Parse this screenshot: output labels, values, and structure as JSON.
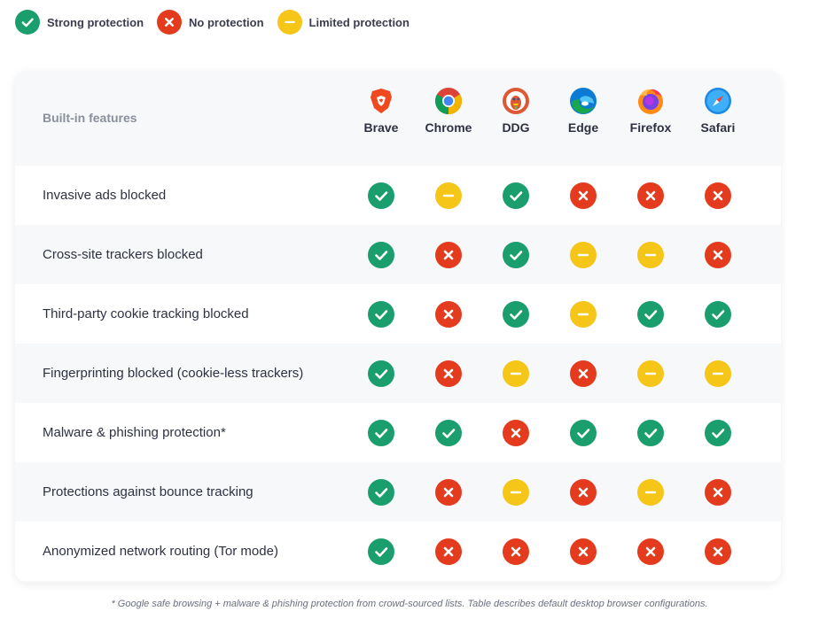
{
  "colors": {
    "strong": "#1a9e6e",
    "none": "#e43b1e",
    "limited": "#f5c518",
    "header_bg": "#f7f8f9",
    "row_alt": "#ffffff"
  },
  "legend": [
    {
      "status": "strong",
      "label": "Strong protection",
      "icon": "check-icon"
    },
    {
      "status": "none",
      "label": "No protection",
      "icon": "x-icon"
    },
    {
      "status": "limited",
      "label": "Limited protection",
      "icon": "minus-icon"
    }
  ],
  "table": {
    "header_label": "Built-in features",
    "browsers": [
      {
        "name": "Brave",
        "icon": "brave-logo-icon"
      },
      {
        "name": "Chrome",
        "icon": "chrome-logo-icon"
      },
      {
        "name": "DDG",
        "icon": "duckduckgo-logo-icon"
      },
      {
        "name": "Edge",
        "icon": "edge-logo-icon"
      },
      {
        "name": "Firefox",
        "icon": "firefox-logo-icon"
      },
      {
        "name": "Safari",
        "icon": "safari-logo-icon"
      }
    ],
    "rows": [
      {
        "feature": "Invasive ads blocked",
        "values": [
          "strong",
          "limited",
          "strong",
          "none",
          "none",
          "none"
        ]
      },
      {
        "feature": "Cross-site trackers blocked",
        "values": [
          "strong",
          "none",
          "strong",
          "limited",
          "limited",
          "none"
        ]
      },
      {
        "feature": "Third-party cookie tracking blocked",
        "values": [
          "strong",
          "none",
          "strong",
          "limited",
          "strong",
          "strong"
        ]
      },
      {
        "feature": "Fingerprinting blocked (cookie-less trackers)",
        "values": [
          "strong",
          "none",
          "limited",
          "none",
          "limited",
          "limited"
        ]
      },
      {
        "feature": "Malware & phishing protection*",
        "values": [
          "strong",
          "strong",
          "none",
          "strong",
          "strong",
          "strong"
        ]
      },
      {
        "feature": "Protections against bounce tracking",
        "values": [
          "strong",
          "none",
          "limited",
          "none",
          "limited",
          "none"
        ]
      },
      {
        "feature": "Anonymized network routing (Tor mode)",
        "values": [
          "strong",
          "none",
          "none",
          "none",
          "none",
          "none"
        ]
      }
    ]
  },
  "footnote": "* Google safe browsing + malware & phishing protection from crowd-sourced lists. Table describes default desktop browser configurations."
}
